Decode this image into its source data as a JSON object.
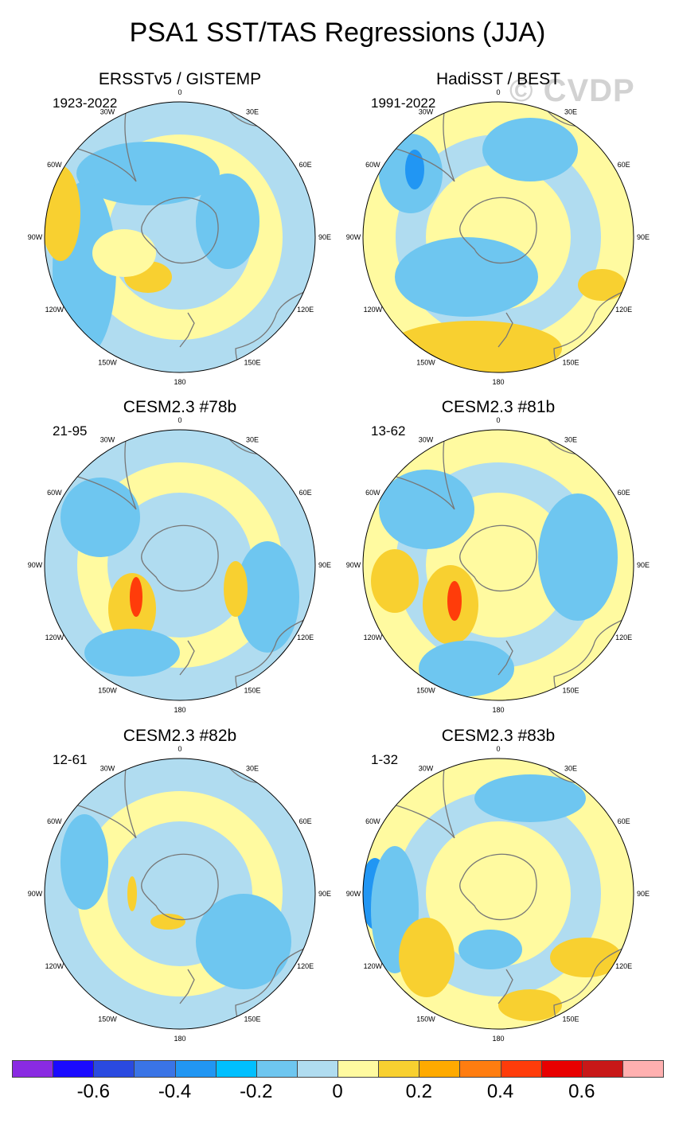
{
  "figure": {
    "title": "PSA1 SST/TAS Regressions (JJA)",
    "watermark": "© CVDP"
  },
  "panels": [
    {
      "title": "ERSSTv5 / GISTEMP",
      "years": "1923-2022"
    },
    {
      "title": "HadiSST / BEST",
      "years": "1991-2022"
    },
    {
      "title": "CESM2.3 #78b",
      "years": "21-95"
    },
    {
      "title": "CESM2.3 #81b",
      "years": "13-62"
    },
    {
      "title": "CESM2.3 #82b",
      "years": "12-61"
    },
    {
      "title": "CESM2.3 #83b",
      "years": "1-32"
    }
  ],
  "longitude_labels": [
    "0",
    "30E",
    "60E",
    "90E",
    "120E",
    "150E",
    "180",
    "150W",
    "120W",
    "90W",
    "60W",
    "30W"
  ],
  "chart_data": {
    "type": "heatmap",
    "projection": "south polar stereographic",
    "variable": "SST/TAS regression on PSA1",
    "season": "JJA",
    "colorbar": {
      "colors": [
        "#8a2be2",
        "#1a0aff",
        "#2a4ae0",
        "#3a74e6",
        "#2196f3",
        "#00bfff",
        "#6ec6f0",
        "#b0dcf0",
        "#fffaa0",
        "#f8d030",
        "#ffaa00",
        "#ff7d10",
        "#ff3c0a",
        "#e80000",
        "#c81818",
        "#ffb0b0"
      ],
      "tick_labels": [
        "-0.6",
        "-0.4",
        "-0.2",
        "0",
        "0.2",
        "0.4",
        "0.6"
      ],
      "tick_values": [
        -0.6,
        -0.4,
        -0.2,
        0,
        0.2,
        0.4,
        0.6
      ]
    }
  }
}
